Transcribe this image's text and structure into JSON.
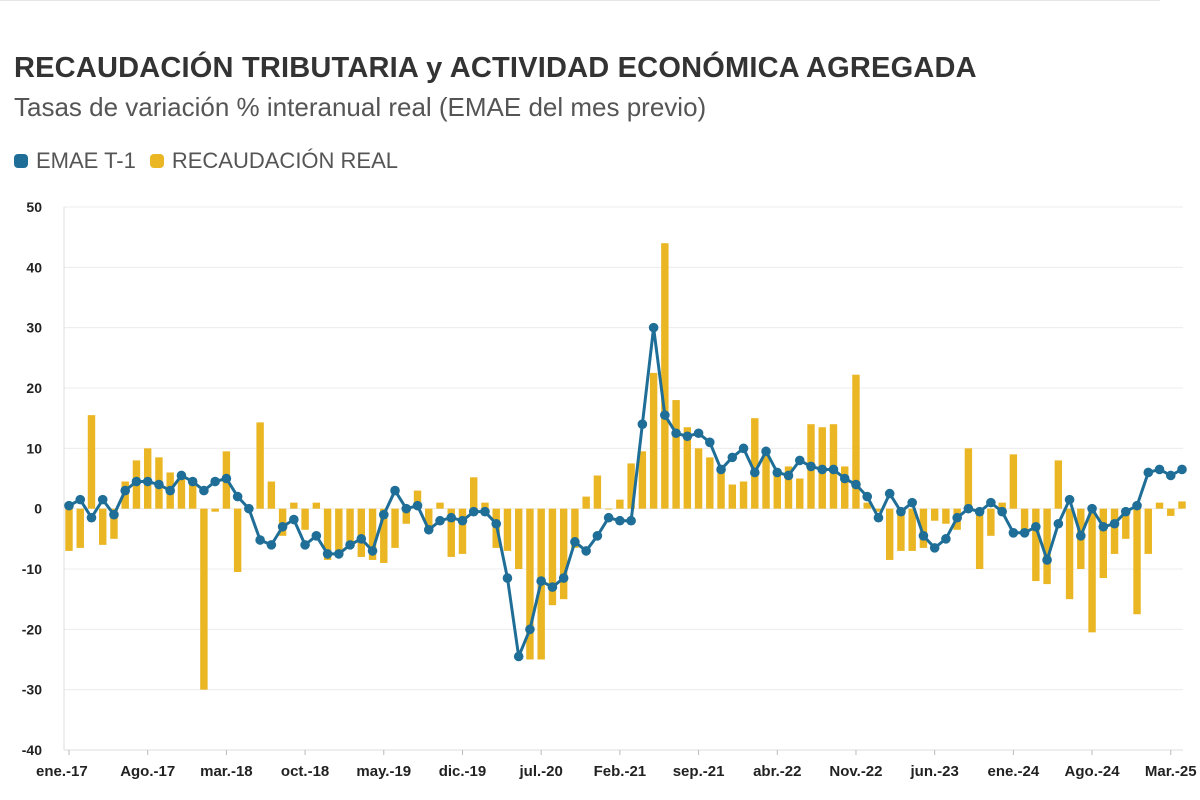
{
  "title": "RECAUDACIÓN TRIBUTARIA y ACTIVIDAD ECONÓMICA AGREGADA",
  "subtitle": "Tasas de variación % interanual real (EMAE del mes previo)",
  "legend": [
    {
      "label": "EMAE T-1",
      "color": "#1f6e97",
      "icon": "line-series-swatch"
    },
    {
      "label": "RECAUDACIÓN REAL",
      "color": "#eab624",
      "icon": "bar-series-swatch"
    }
  ],
  "chart_data": {
    "type": "bar+line",
    "title": "RECAUDACIÓN TRIBUTARIA y ACTIVIDAD ECONÓMICA AGREGADA",
    "subtitle": "Tasas de variación % interanual real (EMAE del mes previo)",
    "ylim": [
      -40,
      50
    ],
    "yticks": [
      50,
      40,
      30,
      20,
      10,
      0,
      -10,
      -20,
      -30,
      -40
    ],
    "grid": true,
    "legend_position": "top-left",
    "x_start": "ene.-17",
    "x_tick_labels": [
      {
        "label": "ene.-17",
        "index": 0
      },
      {
        "label": "Ago.-17",
        "index": 7
      },
      {
        "label": "mar.-18",
        "index": 14
      },
      {
        "label": "oct.-18",
        "index": 21
      },
      {
        "label": "may.-19",
        "index": 28
      },
      {
        "label": "dic.-19",
        "index": 35
      },
      {
        "label": "jul.-20",
        "index": 42
      },
      {
        "label": "Feb.-21",
        "index": 49
      },
      {
        "label": "sep.-21",
        "index": 56
      },
      {
        "label": "abr.-22",
        "index": 63
      },
      {
        "label": "Nov.-22",
        "index": 70
      },
      {
        "label": "jun.-23",
        "index": 77
      },
      {
        "label": "ene.-24",
        "index": 84
      },
      {
        "label": "Ago.-24",
        "index": 91
      },
      {
        "label": "Mar.-25",
        "index": 98
      }
    ],
    "series": [
      {
        "name": "RECAUDACIÓN REAL",
        "type": "bar",
        "color": "#eab624",
        "values": [
          -7,
          -6.5,
          15.5,
          -6,
          -5,
          4.5,
          8,
          10,
          8.5,
          6,
          5.5,
          4.5,
          -30,
          -0.5,
          9.5,
          -10.5,
          -0.5,
          14.3,
          4.5,
          -4.5,
          1,
          -3.5,
          1,
          -8.5,
          -8,
          -6.5,
          -8,
          -8.5,
          -9,
          -6.5,
          -2.5,
          3,
          -3.5,
          1,
          -8,
          -7.5,
          5.2,
          1,
          -6.5,
          -7,
          -10,
          -25,
          -25,
          -16,
          -15,
          -6.5,
          2,
          5.5,
          0,
          1.5,
          7.5,
          9.5,
          22.5,
          44,
          18,
          13.5,
          10,
          8.5,
          6.5,
          4,
          4.5,
          15,
          9,
          6,
          7,
          5,
          14,
          13.5,
          14,
          7,
          22.2,
          1,
          -0.5,
          -8.5,
          -7,
          -7,
          -6.5,
          -2,
          -2.5,
          -3.5,
          10,
          -10,
          -4.5,
          1,
          9,
          -4,
          -12,
          -12.5,
          8,
          -15,
          -10,
          -20.5,
          -11.5,
          -7.5,
          -5,
          -17.5,
          -7.5,
          1,
          -1.2,
          1.2
        ]
      },
      {
        "name": "EMAE T-1",
        "type": "line",
        "color": "#1f6e97",
        "values": [
          0.5,
          1.5,
          -1.5,
          1.5,
          -1,
          3,
          4.5,
          4.5,
          4,
          3,
          5.5,
          4.5,
          3,
          4.5,
          5,
          2,
          0,
          -5.2,
          -6,
          -3,
          -1.8,
          -6,
          -4.5,
          -7.5,
          -7.5,
          -6,
          -5,
          -7,
          -1,
          3,
          0,
          0.5,
          -3.5,
          -2,
          -1.5,
          -2,
          -0.5,
          -0.5,
          -2.5,
          -11.5,
          -24.5,
          -20,
          -12,
          -13,
          -11.5,
          -5.5,
          -7,
          -4.5,
          -1.5,
          -2,
          -2,
          14,
          30,
          15.5,
          12.5,
          12,
          12.5,
          11,
          6.5,
          8.5,
          10,
          6,
          9.5,
          6,
          5.5,
          8,
          7,
          6.5,
          6.5,
          5,
          4,
          2,
          -1.5,
          2.5,
          -0.5,
          1,
          -4.5,
          -6.5,
          -5,
          -1.5,
          0,
          -0.5,
          1,
          -0.5,
          -4,
          -4,
          -3,
          -8.5,
          -2.5,
          1.5,
          -4.5,
          0,
          -3,
          -2.5,
          -0.5,
          0.5,
          6,
          6.5,
          5.5,
          6.5
        ]
      }
    ]
  }
}
